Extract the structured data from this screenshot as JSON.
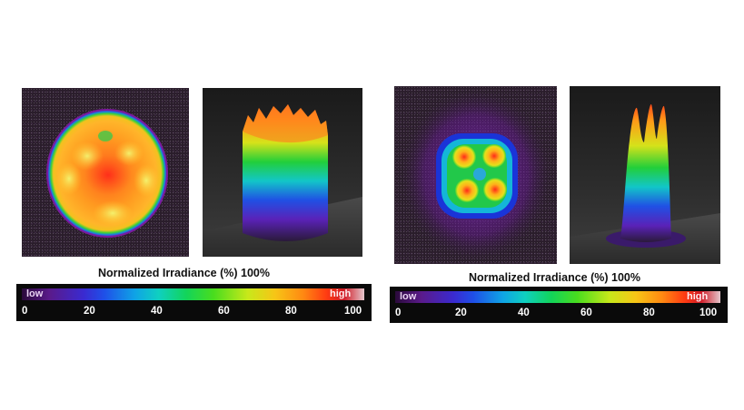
{
  "panels": [
    {
      "title": "Normalized Irradiance (%)  100%",
      "scale": {
        "low": "low",
        "high": "high",
        "ticks": [
          "0",
          "20",
          "40",
          "60",
          "80",
          "100"
        ]
      }
    },
    {
      "title": "Normalized Irradiance (%)  100%",
      "scale": {
        "low": "low",
        "high": "high",
        "ticks": [
          "0",
          "20",
          "40",
          "60",
          "80",
          "100"
        ]
      }
    }
  ]
}
